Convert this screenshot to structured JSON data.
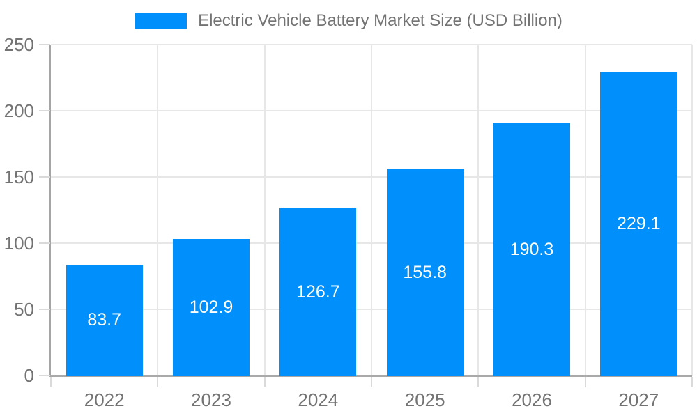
{
  "legend": {
    "series_label": "Electric Vehicle Battery Market Size (USD Billion)"
  },
  "chart_data": {
    "type": "bar",
    "title": "Electric Vehicle Battery Market Size (USD Billion)",
    "categories": [
      "2022",
      "2023",
      "2024",
      "2025",
      "2026",
      "2027"
    ],
    "values": [
      83.7,
      102.9,
      126.7,
      155.8,
      190.3,
      229.1
    ],
    "value_labels": [
      "83.7",
      "102.9",
      "126.7",
      "155.8",
      "190.3",
      "229.1"
    ],
    "xlabel": "",
    "ylabel": "",
    "ylim": [
      0,
      250
    ],
    "yticks": [
      0,
      50,
      100,
      150,
      200,
      250
    ],
    "ytick_labels": [
      "0",
      "50",
      "100",
      "150",
      "200",
      "250"
    ],
    "grid": true,
    "legend_position": "top",
    "colors": {
      "bar": "#008FFB",
      "value_label_text": "#ffffff",
      "axis_label_text": "#737373",
      "gridline": "#e7e7e7",
      "axis_line": "#a5a5a5",
      "tick": "#dadada",
      "background": "#ffffff"
    }
  }
}
